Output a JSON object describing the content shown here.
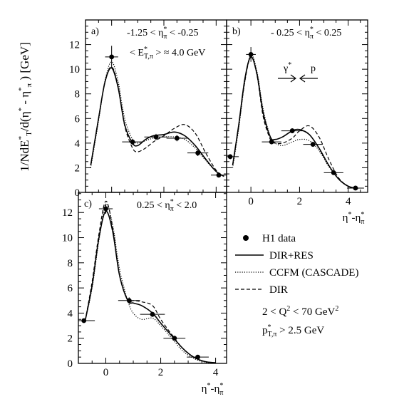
{
  "chart_data": [
    {
      "type": "line",
      "panel_label": "a)",
      "cut_text": "-1.25 < η*π < -0.25",
      "extra_text": "< E*T,π > ≈ 4.0 GeV",
      "xlim": [
        -1.0,
        4.4
      ],
      "ylim": [
        0,
        14
      ],
      "y_ticks": [
        0,
        2,
        4,
        6,
        8,
        10,
        12
      ],
      "x_ticks": [
        0,
        2,
        4
      ],
      "x_tick_labels": false,
      "y_tick_labels": true,
      "data": {
        "name": "H1 data",
        "points": [
          {
            "x": 0.0,
            "y": 11.0,
            "xerr": 0.25,
            "yerr": 0.9
          },
          {
            "x": 0.8,
            "y": 4.1,
            "xerr": 0.4,
            "yerr": 0.25
          },
          {
            "x": 1.7,
            "y": 4.5,
            "xerr": 0.45,
            "yerr": 0.25
          },
          {
            "x": 2.5,
            "y": 4.4,
            "xerr": 0.4,
            "yerr": 0.25
          },
          {
            "x": 3.3,
            "y": 3.2,
            "xerr": 0.4,
            "yerr": 0.25
          },
          {
            "x": 4.1,
            "y": 1.4,
            "xerr": 0.3,
            "yerr": 0.1
          }
        ]
      },
      "series": [
        {
          "name": "DIR+RES",
          "style": "solid",
          "x": [
            -0.8,
            -0.5,
            -0.25,
            0.0,
            0.25,
            0.5,
            0.8,
            1.0,
            1.3,
            1.6,
            2.0,
            2.4,
            2.8,
            3.2,
            3.6,
            4.0,
            4.3
          ],
          "y": [
            2.2,
            6.0,
            9.0,
            10.1,
            8.5,
            5.5,
            4.0,
            3.8,
            4.3,
            4.6,
            4.7,
            4.9,
            4.6,
            3.8,
            2.7,
            1.7,
            1.3
          ]
        },
        {
          "name": "CCFM (CASCADE)",
          "style": "dotted",
          "x": [
            -0.8,
            -0.5,
            -0.25,
            0.0,
            0.25,
            0.5,
            0.8,
            1.0,
            1.3,
            1.6,
            2.0,
            2.4,
            2.8,
            3.2,
            3.6,
            4.0,
            4.3
          ],
          "y": [
            2.0,
            5.8,
            9.1,
            10.6,
            9.0,
            6.0,
            4.3,
            4.0,
            4.2,
            4.4,
            4.5,
            4.5,
            4.3,
            3.6,
            2.6,
            1.7,
            1.3
          ]
        },
        {
          "name": "DIR",
          "style": "dashed",
          "x": [
            -0.8,
            -0.5,
            -0.25,
            0.0,
            0.25,
            0.5,
            0.8,
            1.0,
            1.3,
            1.6,
            2.0,
            2.4,
            2.8,
            3.2,
            3.6,
            4.0,
            4.3
          ],
          "y": [
            2.2,
            6.0,
            9.0,
            10.2,
            8.6,
            5.4,
            3.6,
            3.3,
            3.6,
            4.1,
            4.6,
            5.2,
            5.5,
            4.8,
            3.2,
            1.8,
            1.3
          ]
        }
      ]
    },
    {
      "type": "line",
      "panel_label": "b)",
      "cut_text": "- 0.25 < η*π < 0.25",
      "xlim": [
        -1.0,
        4.8
      ],
      "ylim": [
        0,
        14
      ],
      "y_ticks": [
        0,
        2,
        4,
        6,
        8,
        10,
        12
      ],
      "x_ticks": [
        0,
        2,
        4
      ],
      "x_tick_labels": true,
      "y_tick_labels": false,
      "xlabel": "η*-η*π",
      "arrow_left": "γ*",
      "arrow_right": "p",
      "data": {
        "name": "H1 data",
        "points": [
          {
            "x": -0.85,
            "y": 2.9,
            "xerr": 0.35,
            "yerr": 0.2
          },
          {
            "x": 0.0,
            "y": 11.2,
            "xerr": 0.2,
            "yerr": 0.6
          },
          {
            "x": 0.85,
            "y": 4.1,
            "xerr": 0.4,
            "yerr": 0.2
          },
          {
            "x": 1.7,
            "y": 5.0,
            "xerr": 0.45,
            "yerr": 0.2
          },
          {
            "x": 2.55,
            "y": 3.9,
            "xerr": 0.4,
            "yerr": 0.2
          },
          {
            "x": 3.4,
            "y": 1.6,
            "xerr": 0.4,
            "yerr": 0.15
          },
          {
            "x": 4.3,
            "y": 0.35,
            "xerr": 0.35,
            "yerr": 0.05
          }
        ]
      },
      "series": [
        {
          "name": "DIR+RES",
          "style": "solid",
          "x": [
            -0.75,
            -0.5,
            -0.25,
            0.0,
            0.25,
            0.5,
            0.8,
            1.0,
            1.3,
            1.7,
            2.0,
            2.4,
            2.8,
            3.2,
            3.6,
            4.0,
            4.4
          ],
          "y": [
            2.2,
            5.5,
            9.2,
            11.0,
            9.6,
            6.5,
            4.5,
            4.3,
            4.5,
            5.0,
            5.1,
            4.7,
            3.6,
            2.2,
            1.1,
            0.5,
            0.3
          ]
        },
        {
          "name": "CCFM (CASCADE)",
          "style": "dotted",
          "x": [
            -0.75,
            -0.5,
            -0.25,
            0.0,
            0.25,
            0.5,
            0.8,
            1.0,
            1.3,
            1.7,
            2.0,
            2.4,
            2.8,
            3.2,
            3.6,
            4.0,
            4.4
          ],
          "y": [
            2.0,
            5.2,
            9.0,
            11.2,
            9.8,
            6.8,
            4.5,
            4.0,
            3.8,
            4.1,
            4.3,
            4.2,
            3.4,
            2.1,
            1.1,
            0.5,
            0.3
          ]
        },
        {
          "name": "DIR",
          "style": "dashed",
          "x": [
            -0.75,
            -0.5,
            -0.25,
            0.0,
            0.25,
            0.5,
            0.8,
            1.0,
            1.3,
            1.7,
            2.0,
            2.4,
            2.8,
            3.2,
            3.6,
            4.0,
            4.4
          ],
          "y": [
            2.2,
            5.4,
            9.0,
            11.0,
            9.5,
            6.2,
            4.3,
            4.0,
            4.0,
            4.4,
            5.0,
            5.4,
            4.5,
            2.7,
            1.2,
            0.5,
            0.3
          ]
        }
      ]
    },
    {
      "type": "line",
      "panel_label": "c)",
      "cut_text": "0.25 < η*π < 2.0",
      "xlim": [
        -1.0,
        4.4
      ],
      "ylim": [
        0,
        13.6
      ],
      "y_ticks": [
        0,
        2,
        4,
        6,
        8,
        10,
        12
      ],
      "x_ticks": [
        0,
        2,
        4
      ],
      "x_tick_labels": true,
      "y_tick_labels": true,
      "xlabel": "η*-η*π",
      "data": {
        "name": "H1 data",
        "points": [
          {
            "x": -0.8,
            "y": 3.4,
            "xerr": 0.4,
            "yerr": 0.15
          },
          {
            "x": 0.0,
            "y": 12.3,
            "xerr": 0.25,
            "yerr": 0.4
          },
          {
            "x": 0.85,
            "y": 5.0,
            "xerr": 0.4,
            "yerr": 0.25
          },
          {
            "x": 1.7,
            "y": 3.9,
            "xerr": 0.45,
            "yerr": 0.2
          },
          {
            "x": 2.5,
            "y": 2.0,
            "xerr": 0.4,
            "yerr": 0.15
          },
          {
            "x": 3.35,
            "y": 0.5,
            "xerr": 0.4,
            "yerr": 0.05
          }
        ]
      },
      "series": [
        {
          "name": "DIR+RES",
          "style": "solid",
          "x": [
            -0.75,
            -0.5,
            -0.25,
            0.0,
            0.25,
            0.5,
            0.8,
            1.0,
            1.3,
            1.7,
            2.0,
            2.4,
            2.8,
            3.2,
            3.6,
            4.0
          ],
          "y": [
            3.4,
            6.2,
            10.0,
            12.1,
            10.5,
            7.0,
            5.0,
            4.8,
            4.6,
            4.0,
            3.2,
            2.2,
            1.2,
            0.5,
            0.15,
            0.05
          ]
        },
        {
          "name": "CCFM (CASCADE)",
          "style": "dotted",
          "x": [
            -0.75,
            -0.5,
            -0.25,
            0.0,
            0.25,
            0.5,
            0.8,
            1.0,
            1.3,
            1.7,
            2.0,
            2.4,
            2.8,
            3.2,
            3.6,
            4.0
          ],
          "y": [
            3.4,
            6.0,
            9.8,
            12.6,
            11.0,
            7.5,
            5.0,
            4.0,
            3.5,
            3.6,
            3.0,
            2.0,
            1.0,
            0.4,
            0.1,
            0.05
          ]
        },
        {
          "name": "DIR",
          "style": "dashed",
          "x": [
            -0.75,
            -0.5,
            -0.25,
            0.0,
            0.25,
            0.5,
            0.8,
            1.0,
            1.3,
            1.7,
            2.0,
            2.4,
            2.8,
            3.2,
            3.6,
            4.0
          ],
          "y": [
            3.4,
            6.5,
            10.3,
            12.9,
            10.8,
            7.0,
            5.0,
            5.0,
            4.9,
            4.6,
            3.5,
            2.3,
            1.2,
            0.5,
            0.15,
            0.05
          ]
        }
      ]
    }
  ],
  "ylabel": "1/NdE*T/d(η* - η*π ) [GeV]",
  "legend": {
    "entries": [
      {
        "label": "H1 data",
        "kind": "marker"
      },
      {
        "label": "DIR+RES",
        "kind": "solid"
      },
      {
        "label": "CCFM (CASCADE)",
        "kind": "dotted"
      },
      {
        "label": "DIR",
        "kind": "dashed"
      }
    ],
    "note_q2": "2 < Q² < 70 GeV²",
    "note_pt": "p*T,π > 2.5 GeV"
  }
}
